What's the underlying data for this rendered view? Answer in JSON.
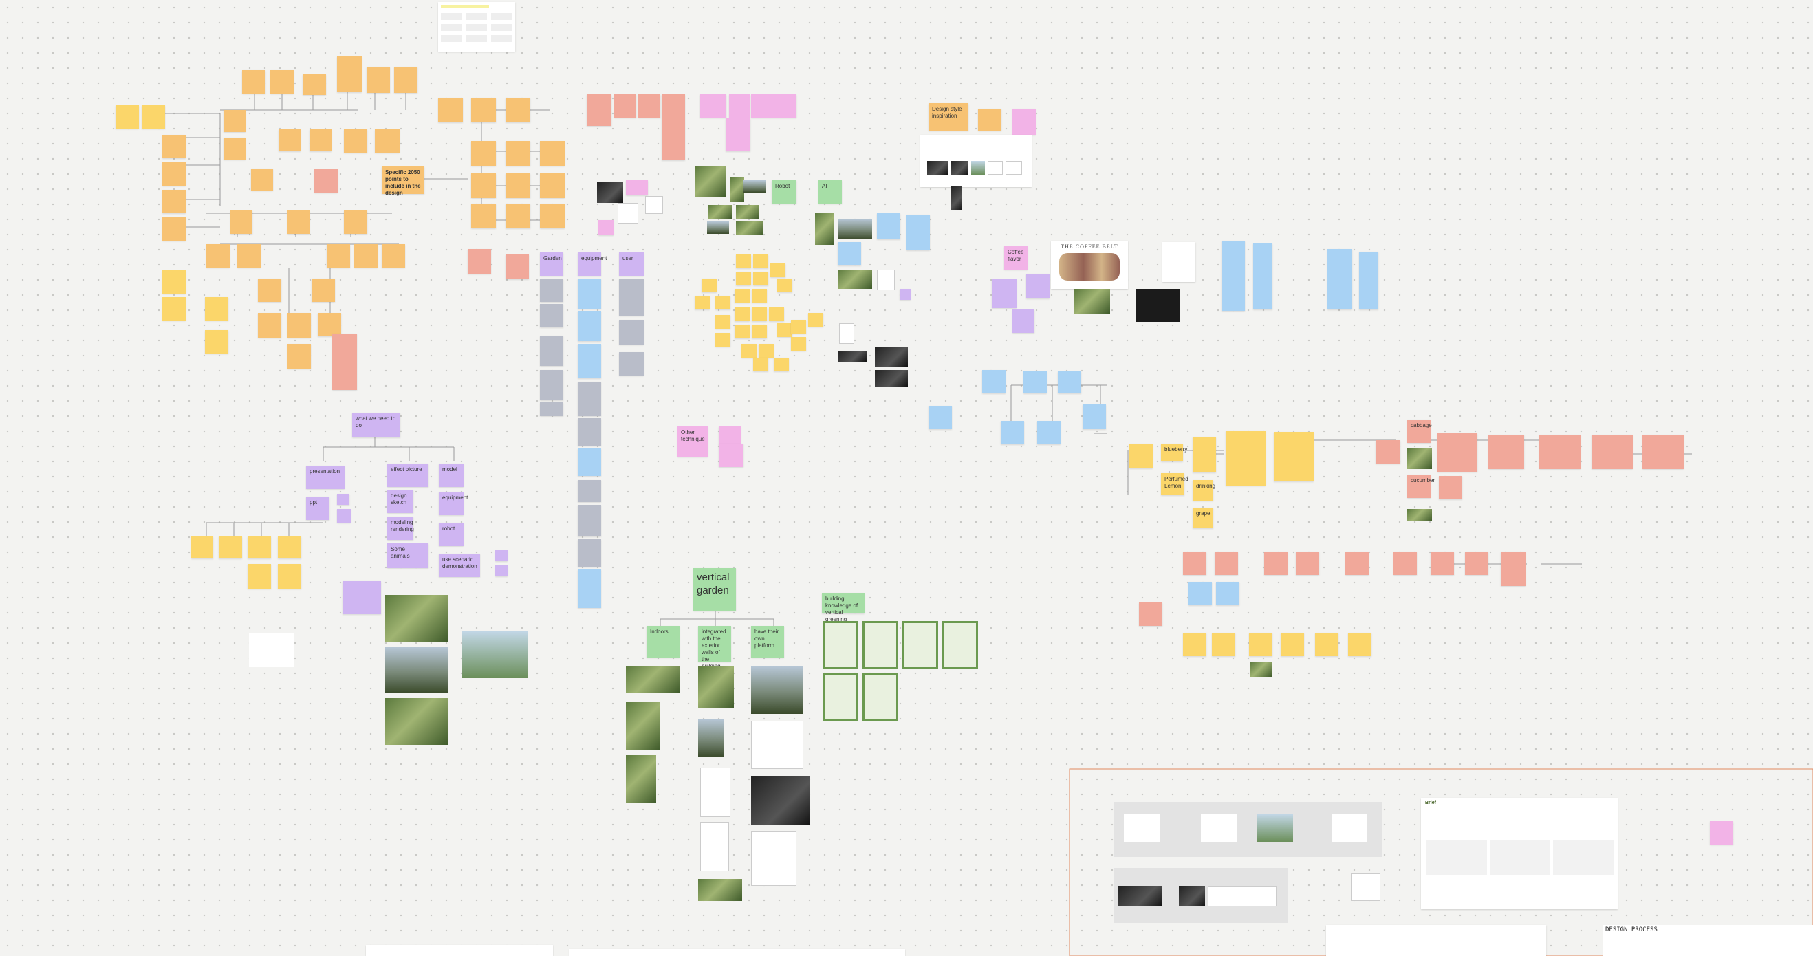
{
  "canvas": {
    "background": "#f3f3f1"
  },
  "headings": {
    "specific": "Specific 2050 points to include in the design",
    "need": "what we need to do",
    "vertical_garden": "vertical garden",
    "building_knowledge": "building knowledge of vertical greening",
    "design_inspiration": "Design style inspiration",
    "coffee_flavor": "Coffee flavor",
    "coffee_belt": "THE COFFEE BELT",
    "brief": "Brief",
    "design_process": "DESIGN PROCESS"
  },
  "needs": {
    "presentation": "presentation",
    "ppt": "ppt",
    "effect_picture": "effect picture",
    "design_sketch": "design sketch",
    "modeling_rendering": "modeling rendering",
    "animals": "Some animals",
    "model": "model",
    "equipment": "equipment",
    "robot": "robot",
    "demo": "use scenario demonstration"
  },
  "columns": {
    "garden": "Garden",
    "equipment": "equipment",
    "user": "user"
  },
  "garden_types": {
    "indoors": "Indoors",
    "integrated": "integrated with the exterior walls of the building",
    "platform": "have their own platform"
  },
  "labels": {
    "robot": "Robot",
    "ai": "AI",
    "other_technique": "Other technique",
    "blueberry": "blueberry",
    "cabbage": "cabbage",
    "cucumber": "cucumber",
    "perfumed_lemon": "Perfumed Lemon",
    "grape": "grape",
    "drinking": "drinking"
  },
  "colors": {
    "yellow": "#fbd66a",
    "orange": "#f7c273",
    "red": "#f1a89a",
    "purple": "#cfb5f2",
    "pink": "#f2b3e7",
    "blue": "#a8d2f4",
    "green": "#a6dea6",
    "grey": "#b9bdc9"
  }
}
